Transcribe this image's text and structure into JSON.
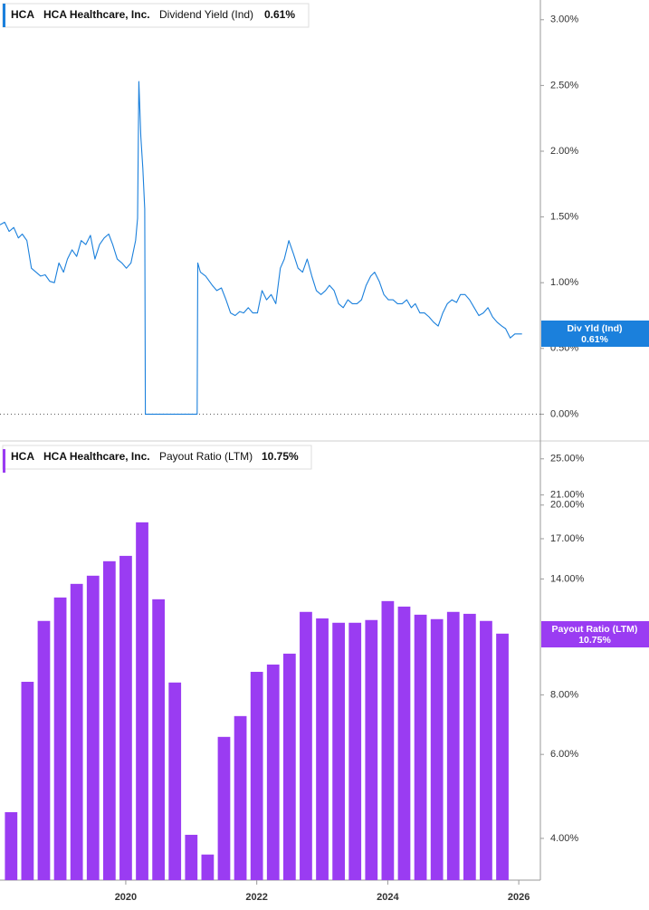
{
  "chart_data": [
    {
      "type": "line",
      "ticker": "HCA",
      "company": "HCA Healthcare, Inc.",
      "xlim": [
        2018.08,
        2026.33
      ],
      "ylim": [
        -0.19,
        3.15
      ],
      "yticks": [
        {
          "value": 3,
          "label": "3.00%"
        },
        {
          "value": 2.5,
          "label": "2.50%"
        },
        {
          "value": 2,
          "label": "2.00%"
        },
        {
          "value": 1.5,
          "label": "1.50%"
        },
        {
          "value": 1,
          "label": "1.00%"
        },
        {
          "value": 0.5,
          "label": "0.50%"
        },
        {
          "value": 0,
          "label": "0.00%"
        }
      ],
      "series": [
        {
          "name": "Dividend Yield (Ind)",
          "short_name": "Div Yld (Ind)",
          "color": "#1b80dc",
          "last_value": {
            "value": 0.61,
            "label": "0.61%"
          },
          "x": [
            2018.08,
            2018.15,
            2018.22,
            2018.29,
            2018.36,
            2018.42,
            2018.49,
            2018.56,
            2018.63,
            2018.7,
            2018.77,
            2018.84,
            2018.91,
            2018.98,
            2019.05,
            2019.11,
            2019.18,
            2019.25,
            2019.32,
            2019.39,
            2019.46,
            2019.53,
            2019.6,
            2019.67,
            2019.74,
            2019.8,
            2019.87,
            2019.94,
            2020.01,
            2020.08,
            2020.15,
            2020.18,
            2020.2,
            2020.23,
            2020.26,
            2020.29,
            2020.3,
            2020.42,
            2020.7,
            2020.98,
            2021.09,
            2021.1,
            2021.14,
            2021.22,
            2021.32,
            2021.39,
            2021.46,
            2021.53,
            2021.6,
            2021.67,
            2021.74,
            2021.8,
            2021.87,
            2021.94,
            2022.01,
            2022.08,
            2022.15,
            2022.22,
            2022.29,
            2022.36,
            2022.42,
            2022.49,
            2022.56,
            2022.63,
            2022.7,
            2022.77,
            2022.84,
            2022.91,
            2022.98,
            2023.05,
            2023.11,
            2023.18,
            2023.25,
            2023.32,
            2023.39,
            2023.46,
            2023.53,
            2023.6,
            2023.67,
            2023.74,
            2023.8,
            2023.87,
            2023.94,
            2024.01,
            2024.08,
            2024.15,
            2024.22,
            2024.29,
            2024.36,
            2024.42,
            2024.49,
            2024.56,
            2024.63,
            2024.7,
            2024.77,
            2024.84,
            2024.91,
            2024.98,
            2025.05,
            2025.11,
            2025.18,
            2025.25,
            2025.32,
            2025.39,
            2025.46,
            2025.53,
            2025.6,
            2025.67,
            2025.74,
            2025.8,
            2025.87,
            2025.94,
            2026.01,
            2026.05
          ],
          "values": [
            1.44,
            1.46,
            1.39,
            1.42,
            1.34,
            1.37,
            1.32,
            1.11,
            1.08,
            1.05,
            1.06,
            1.01,
            1.0,
            1.15,
            1.08,
            1.18,
            1.25,
            1.2,
            1.32,
            1.29,
            1.36,
            1.18,
            1.29,
            1.34,
            1.37,
            1.29,
            1.18,
            1.15,
            1.11,
            1.15,
            1.32,
            1.49,
            2.53,
            2.11,
            1.87,
            1.56,
            0,
            0,
            0,
            0,
            0,
            1.15,
            1.08,
            1.05,
            0.98,
            0.94,
            0.96,
            0.87,
            0.77,
            0.75,
            0.78,
            0.77,
            0.81,
            0.77,
            0.77,
            0.94,
            0.87,
            0.91,
            0.84,
            1.11,
            1.18,
            1.32,
            1.22,
            1.11,
            1.08,
            1.18,
            1.05,
            0.94,
            0.91,
            0.94,
            0.98,
            0.94,
            0.84,
            0.81,
            0.87,
            0.84,
            0.84,
            0.87,
            0.98,
            1.05,
            1.08,
            1.01,
            0.91,
            0.87,
            0.87,
            0.84,
            0.84,
            0.87,
            0.81,
            0.84,
            0.77,
            0.77,
            0.74,
            0.7,
            0.67,
            0.77,
            0.84,
            0.87,
            0.85,
            0.91,
            0.91,
            0.87,
            0.81,
            0.75,
            0.77,
            0.81,
            0.74,
            0.7,
            0.67,
            0.65,
            0.58,
            0.61,
            0.61,
            0.61
          ]
        }
      ]
    },
    {
      "type": "bar",
      "ticker": "HCA",
      "company": "HCA Healthcare, Inc.",
      "xlim": [
        2018.08,
        2026.33
      ],
      "xticks": [
        2020,
        2022,
        2024,
        2026
      ],
      "log_scale": true,
      "ylim": [
        3.27,
        26.9
      ],
      "yticks": [
        {
          "value": 25,
          "label": "25.00%"
        },
        {
          "value": 21,
          "label": "21.00%"
        },
        {
          "value": 20,
          "label": "20.00%"
        },
        {
          "value": 17,
          "label": "17.00%"
        },
        {
          "value": 14,
          "label": "14.00%"
        },
        {
          "value": 8,
          "label": "8.00%"
        },
        {
          "value": 6,
          "label": "6.00%"
        },
        {
          "value": 4,
          "label": "4.00%"
        }
      ],
      "series": [
        {
          "name": "Payout Ratio (LTM)",
          "short_name": "Payout Ratio (LTM)",
          "color": "#9a3cf2",
          "last_value": {
            "value": 10.75,
            "label": "10.75%"
          },
          "x": [
            2018.25,
            2018.5,
            2018.75,
            2019,
            2019.25,
            2019.5,
            2019.75,
            2020,
            2020.25,
            2020.5,
            2020.75,
            2021,
            2021.25,
            2021.5,
            2021.75,
            2022,
            2022.25,
            2022.5,
            2022.75,
            2023,
            2023.25,
            2023.5,
            2023.75,
            2024,
            2024.25,
            2024.5,
            2024.75,
            2025,
            2025.25,
            2025.5,
            2025.75
          ],
          "values": [
            4.54,
            8.52,
            11.43,
            12.8,
            13.67,
            14.22,
            15.25,
            15.65,
            18.4,
            12.69,
            8.49,
            4.07,
            3.7,
            6.53,
            7.22,
            8.94,
            9.26,
            9.76,
            11.94,
            11.57,
            11.33,
            11.33,
            11.48,
            12.58,
            12.25,
            11.78,
            11.53,
            11.94,
            11.83,
            11.43,
            10.75
          ]
        }
      ]
    }
  ]
}
